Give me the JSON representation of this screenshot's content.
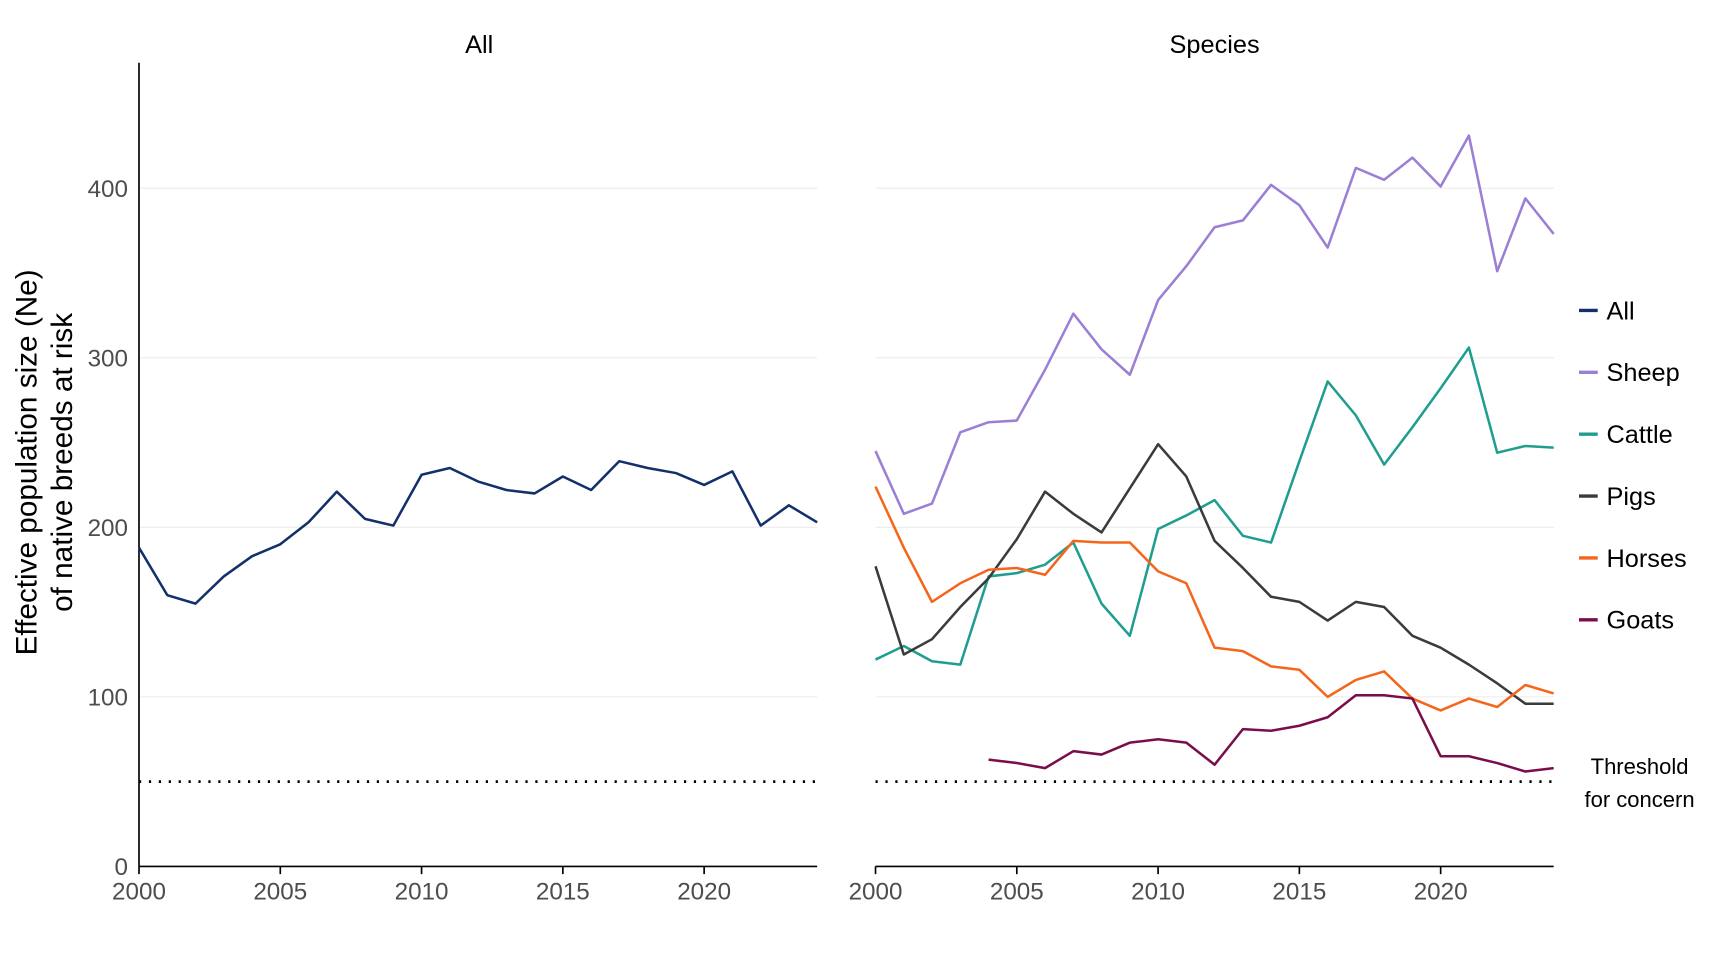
{
  "chart_data": [
    {
      "type": "line",
      "title": "All",
      "ylabel": [
        "Effective population size (Ne)",
        "of native breeds at risk"
      ],
      "xlabel": "",
      "xlim": [
        2000,
        2024
      ],
      "ylim": [
        0,
        474
      ],
      "xticks": [
        "2000",
        "2005",
        "2010",
        "2015",
        "2020"
      ],
      "yticks": [
        "0",
        "100",
        "200",
        "300",
        "400"
      ],
      "grid": "horizontal major",
      "threshold": {
        "value": 50,
        "style": "dotted"
      },
      "series": [
        {
          "name": "All",
          "color": "#13306b",
          "x_start": 2000,
          "values": [
            188,
            160,
            155,
            171,
            183,
            190,
            203,
            221,
            205,
            201,
            231,
            235,
            227,
            222,
            220,
            230,
            222,
            239,
            235,
            232,
            225,
            233,
            201,
            213,
            203
          ]
        }
      ]
    },
    {
      "type": "line",
      "title": "Species",
      "xlim": [
        2000,
        2024
      ],
      "ylim": [
        0,
        474
      ],
      "xticks": [
        "2000",
        "2005",
        "2010",
        "2015",
        "2020"
      ],
      "grid": "horizontal major",
      "threshold": {
        "value": 50,
        "style": "dotted",
        "label": [
          "Threshold",
          "for concern"
        ]
      },
      "legend_placement": "right",
      "series": [
        {
          "name": "Sheep",
          "color": "#9b7fd6",
          "x_start": 2000,
          "values": [
            245,
            208,
            214,
            256,
            262,
            263,
            293,
            326,
            305,
            290,
            334,
            354,
            377,
            381,
            402,
            390,
            365,
            412,
            405,
            418,
            401,
            431,
            351,
            394,
            373
          ]
        },
        {
          "name": "Cattle",
          "color": "#1f9e8f",
          "x_start": 2000,
          "values": [
            122,
            130,
            121,
            119,
            171,
            173,
            178,
            191,
            155,
            136,
            199,
            207,
            216,
            195,
            191,
            239,
            286,
            266,
            237,
            259,
            282,
            306,
            244,
            248,
            247
          ]
        },
        {
          "name": "Pigs",
          "color": "#3b3b3b",
          "x_start": 2000,
          "values": [
            177,
            125,
            134,
            153,
            170,
            193,
            221,
            208,
            197,
            223,
            249,
            230,
            192,
            176,
            159,
            156,
            145,
            156,
            153,
            136,
            129,
            119,
            108,
            96,
            96
          ]
        },
        {
          "name": "Horses",
          "color": "#f4661b",
          "x_start": 2000,
          "values": [
            224,
            188,
            156,
            167,
            175,
            176,
            172,
            192,
            191,
            191,
            174,
            167,
            129,
            127,
            118,
            116,
            100,
            110,
            115,
            99,
            92,
            99,
            94,
            107,
            102
          ]
        },
        {
          "name": "Goats",
          "color": "#7b0e4a",
          "x_start": 2004,
          "values": [
            63,
            61,
            58,
            68,
            66,
            73,
            75,
            73,
            60,
            81,
            80,
            83,
            88,
            101,
            101,
            99,
            65,
            65,
            61,
            56,
            58
          ]
        }
      ]
    }
  ],
  "legend": [
    {
      "label": "All",
      "color": "#13306b"
    },
    {
      "label": "Sheep",
      "color": "#9b7fd6"
    },
    {
      "label": "Cattle",
      "color": "#1f9e8f"
    },
    {
      "label": "Pigs",
      "color": "#3b3b3b"
    },
    {
      "label": "Horses",
      "color": "#f4661b"
    },
    {
      "label": "Goats",
      "color": "#7b0e4a"
    }
  ]
}
